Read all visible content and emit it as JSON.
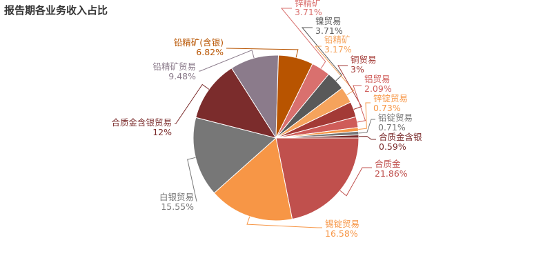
{
  "title": "报告期各业务收入占比",
  "chart_data": {
    "type": "pie",
    "title": "报告期各业务收入占比",
    "unit": "%",
    "slices": [
      {
        "name": "合质金",
        "value": 21.86,
        "label": "21.86%",
        "color": "#c0504d"
      },
      {
        "name": "锡锭贸易",
        "value": 16.58,
        "label": "16.58%",
        "color": "#f79646"
      },
      {
        "name": "白银贸易",
        "value": 15.55,
        "label": "15.55%",
        "color": "#777777"
      },
      {
        "name": "合质金含银贸易",
        "value": 12,
        "label": "12%",
        "color": "#7b2c2c"
      },
      {
        "name": "铅精矿贸易",
        "value": 9.48,
        "label": "9.48%",
        "color": "#8b7b8b"
      },
      {
        "name": "铅精矿(含银)",
        "value": 6.82,
        "label": "6.82%",
        "color": "#b85400"
      },
      {
        "name": "锌精矿",
        "value": 3.71,
        "label": "3.71%",
        "color": "#d9706e"
      },
      {
        "name": "镍贸易",
        "value": 3.71,
        "label": "3.71%",
        "color": "#595959"
      },
      {
        "name": "铅精矿",
        "value": 3.17,
        "label": "3.17%",
        "color": "#f5a35c"
      },
      {
        "name": "铜贸易",
        "value": 3,
        "label": "3%",
        "color": "#a33a36"
      },
      {
        "name": "铝贸易",
        "value": 2.09,
        "label": "2.09%",
        "color": "#cf5c59"
      },
      {
        "name": "锌锭贸易",
        "value": 0.73,
        "label": "0.73%",
        "color": "#f79646"
      },
      {
        "name": "铅锭贸易",
        "value": 0.71,
        "label": "0.71%",
        "color": "#777777"
      },
      {
        "name": "合质金含银",
        "value": 0.59,
        "label": "0.59%",
        "color": "#7b2c2c"
      }
    ]
  }
}
